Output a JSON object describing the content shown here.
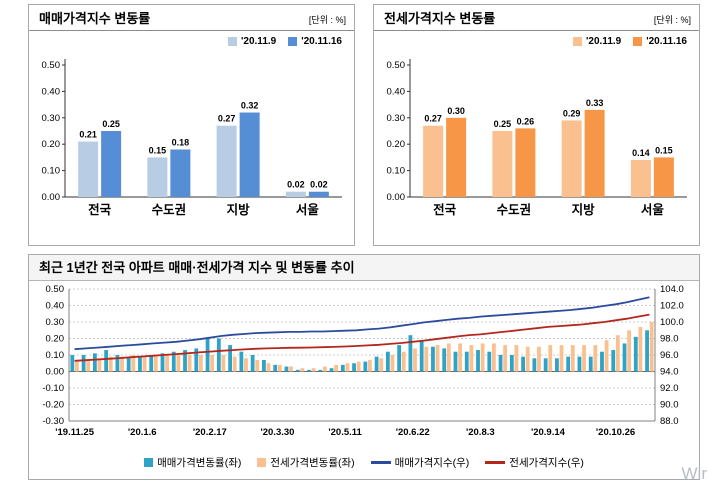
{
  "watermark": "Wir",
  "chart_data": [
    {
      "type": "bar",
      "title": "매매가격지수 변동률",
      "unit": "[단위 : %]",
      "categories": [
        "전국",
        "수도권",
        "지방",
        "서울"
      ],
      "series": [
        {
          "name": "'20.11.9",
          "color": "#b8cce4",
          "values": [
            0.21,
            0.15,
            0.27,
            0.02
          ]
        },
        {
          "name": "'20.11.16",
          "color": "#558ed5",
          "values": [
            0.25,
            0.18,
            0.32,
            0.02
          ]
        }
      ],
      "ylim": [
        0,
        0.5
      ],
      "ytick": 0.1,
      "grid": false,
      "legend_position": "top-right"
    },
    {
      "type": "bar",
      "title": "전세가격지수 변동률",
      "unit": "[단위 : %]",
      "categories": [
        "전국",
        "수도권",
        "지방",
        "서울"
      ],
      "series": [
        {
          "name": "'20.11.9",
          "color": "#fac090",
          "values": [
            0.27,
            0.25,
            0.29,
            0.14
          ]
        },
        {
          "name": "'20.11.16",
          "color": "#f79646",
          "values": [
            0.3,
            0.26,
            0.33,
            0.15
          ]
        }
      ],
      "ylim": [
        0,
        0.5
      ],
      "ytick": 0.1,
      "grid": false,
      "legend_position": "top-right"
    },
    {
      "type": "combo",
      "title": "최근 1년간 전국 아파트 매매·전세가격 지수 및 변동률 추이",
      "n_points": 52,
      "label_every": 6,
      "x_labels": [
        "'19.11.25",
        "'20.1.6",
        "'20.2.17",
        "'20.3.30",
        "'20.5.11",
        "'20.6.22",
        "'20.8.3",
        "'20.9.14",
        "'20.10.26"
      ],
      "left_ylim": [
        -0.3,
        0.5
      ],
      "left_tick": 0.1,
      "right_ylim": [
        88.0,
        104.0
      ],
      "right_tick": 2.0,
      "grid": true,
      "legend_position": "bottom",
      "bar_series": [
        {
          "name": "매매가격변동률(좌)",
          "color": "#2fa3c6",
          "axis": "left",
          "values": [
            0.1,
            0.1,
            0.11,
            0.13,
            0.1,
            0.09,
            0.09,
            0.1,
            0.11,
            0.12,
            0.13,
            0.14,
            0.2,
            0.2,
            0.16,
            0.12,
            0.1,
            0.07,
            0.04,
            0.03,
            0.01,
            0.01,
            0.01,
            0.02,
            0.04,
            0.05,
            0.06,
            0.09,
            0.12,
            0.16,
            0.22,
            0.19,
            0.15,
            0.14,
            0.12,
            0.12,
            0.13,
            0.12,
            0.1,
            0.1,
            0.09,
            0.08,
            0.08,
            0.08,
            0.09,
            0.09,
            0.09,
            0.12,
            0.13,
            0.17,
            0.21,
            0.25
          ]
        },
        {
          "name": "전세가격변동률(좌)",
          "color": "#fac090",
          "axis": "left",
          "values": [
            0.06,
            0.07,
            0.08,
            0.09,
            0.09,
            0.1,
            0.09,
            0.09,
            0.1,
            0.1,
            0.1,
            0.1,
            0.1,
            0.1,
            0.09,
            0.08,
            0.07,
            0.05,
            0.04,
            0.03,
            0.02,
            0.02,
            0.03,
            0.04,
            0.05,
            0.06,
            0.07,
            0.08,
            0.1,
            0.12,
            0.14,
            0.15,
            0.16,
            0.17,
            0.17,
            0.16,
            0.17,
            0.17,
            0.16,
            0.16,
            0.15,
            0.15,
            0.16,
            0.16,
            0.16,
            0.16,
            0.16,
            0.19,
            0.22,
            0.25,
            0.27,
            0.3
          ]
        }
      ],
      "line_series": [
        {
          "name": "매매가격지수(우)",
          "color": "#2a4b9e",
          "axis": "right",
          "values": [
            96.7,
            96.8,
            96.9,
            97.0,
            97.1,
            97.2,
            97.3,
            97.4,
            97.5,
            97.6,
            97.75,
            97.9,
            98.1,
            98.3,
            98.45,
            98.55,
            98.65,
            98.7,
            98.75,
            98.8,
            98.8,
            98.85,
            98.85,
            98.9,
            98.95,
            99.0,
            99.1,
            99.2,
            99.35,
            99.55,
            99.75,
            99.95,
            100.1,
            100.25,
            100.4,
            100.5,
            100.65,
            100.75,
            100.85,
            100.95,
            101.05,
            101.15,
            101.25,
            101.35,
            101.45,
            101.6,
            101.75,
            101.95,
            102.15,
            102.4,
            102.7,
            103.0
          ]
        },
        {
          "name": "전세가격지수(우)",
          "color": "#b4271d",
          "axis": "right",
          "values": [
            95.3,
            95.37,
            95.45,
            95.54,
            95.63,
            95.73,
            95.82,
            95.91,
            96.01,
            96.11,
            96.21,
            96.31,
            96.41,
            96.51,
            96.6,
            96.68,
            96.75,
            96.8,
            96.84,
            96.87,
            96.89,
            96.91,
            96.94,
            96.98,
            97.03,
            97.09,
            97.16,
            97.24,
            97.34,
            97.46,
            97.6,
            97.75,
            97.91,
            98.08,
            98.25,
            98.41,
            98.5,
            98.65,
            98.8,
            98.95,
            99.1,
            99.25,
            99.4,
            99.5,
            99.6,
            99.7,
            99.85,
            100.0,
            100.2,
            100.4,
            100.65,
            100.9
          ]
        }
      ]
    }
  ]
}
